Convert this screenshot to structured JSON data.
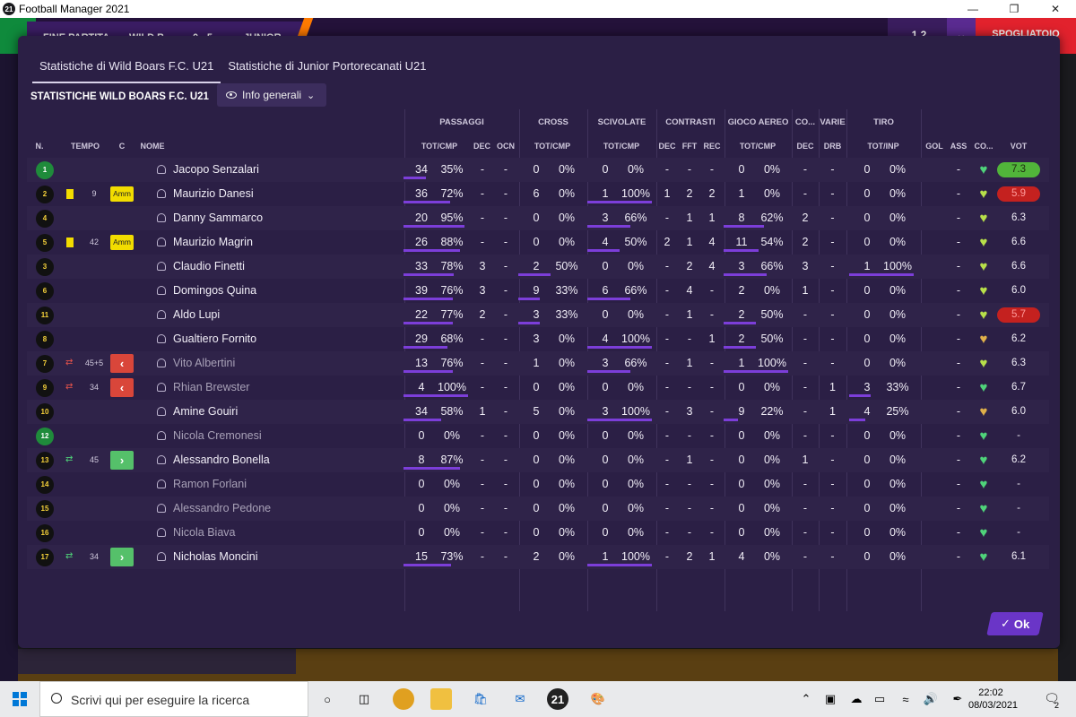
{
  "window": {
    "title": "Football Manager 2021",
    "logo": "21"
  },
  "game_bar": {
    "status": "FINE PARTITA",
    "home_team": "WILD B",
    "score": "0 - 5",
    "away_team": "JUNIOR",
    "menu_label": "1 2",
    "spogliatoio": "SPOGLIATOIO"
  },
  "tabs": [
    {
      "label": "Statistiche di Wild Boars F.C. U21",
      "active": true
    },
    {
      "label": "Statistiche di Junior Portorecanati U21",
      "active": false
    }
  ],
  "section_title": "STATISTICHE WILD BOARS F.C. U21",
  "view_dropdown": {
    "label": "Info generali"
  },
  "groups": [
    "PASSAGGI",
    "CROSS",
    "SCIVOLATE",
    "CONTRASTI",
    "GIOCO AEREO",
    "CO...",
    "VARIE",
    "TIRO"
  ],
  "columns": {
    "num": "N.",
    "tempo": "TEMPO",
    "c": "C",
    "nome": "NOME",
    "pass_totcmp": "TOT/CMP",
    "pass_dec": "DEC",
    "pass_ocn": "OCN",
    "cross_totcmp": "TOT/CMP",
    "sciv_totcmp": "TOT/CMP",
    "con_dec": "DEC",
    "con_fft": "FFT",
    "con_rec": "REC",
    "aereo_totcmp": "TOT/CMP",
    "co_dec": "DEC",
    "varie_drb": "DRB",
    "tiro_totinp": "TOT/INP",
    "gol": "GOL",
    "ass": "ASS",
    "cond": "CO...",
    "vot": "VOT"
  },
  "players": [
    {
      "num": "1",
      "gk": true,
      "card": "",
      "tempo": "",
      "c": "",
      "sub": "",
      "name": "Jacopo Senzalari",
      "dim": false,
      "pass_tot": "34",
      "pass_pct": "35%",
      "pass_pct_val": 35,
      "pass_dec": "-",
      "pass_ocn": "-",
      "cross_tot": "0",
      "cross_pct": "0%",
      "cross_pct_val": 0,
      "sciv_tot": "0",
      "sciv_pct": "0%",
      "sciv_pct_val": 0,
      "con_dec": "-",
      "con_fft": "-",
      "con_rec": "-",
      "aereo_tot": "0",
      "aereo_pct": "0%",
      "aereo_pct_val": 0,
      "co_dec": "-",
      "drb": "-",
      "tiro_tot": "0",
      "tiro_pct": "0%",
      "tiro_pct_val": 0,
      "gol": "",
      "ass": "-",
      "heart": "#4fd37a",
      "vot": "7.3",
      "vot_style": "green"
    },
    {
      "num": "2",
      "gk": false,
      "card": "yellow",
      "tempo": "9",
      "c": "Amm",
      "sub": "",
      "name": "Maurizio Danesi",
      "dim": false,
      "pass_tot": "36",
      "pass_pct": "72%",
      "pass_pct_val": 72,
      "pass_dec": "-",
      "pass_ocn": "-",
      "cross_tot": "6",
      "cross_pct": "0%",
      "cross_pct_val": 0,
      "sciv_tot": "1",
      "sciv_pct": "100%",
      "sciv_pct_val": 100,
      "con_dec": "1",
      "con_fft": "2",
      "con_rec": "2",
      "aereo_tot": "1",
      "aereo_pct": "0%",
      "aereo_pct_val": 0,
      "co_dec": "-",
      "drb": "-",
      "tiro_tot": "0",
      "tiro_pct": "0%",
      "tiro_pct_val": 0,
      "gol": "",
      "ass": "-",
      "heart": "#b8e04a",
      "vot": "5.9",
      "vot_style": "red"
    },
    {
      "num": "4",
      "gk": false,
      "card": "",
      "tempo": "",
      "c": "",
      "sub": "",
      "name": "Danny Sammarco",
      "dim": false,
      "pass_tot": "20",
      "pass_pct": "95%",
      "pass_pct_val": 95,
      "pass_dec": "-",
      "pass_ocn": "-",
      "cross_tot": "0",
      "cross_pct": "0%",
      "cross_pct_val": 0,
      "sciv_tot": "3",
      "sciv_pct": "66%",
      "sciv_pct_val": 66,
      "con_dec": "-",
      "con_fft": "1",
      "con_rec": "1",
      "aereo_tot": "8",
      "aereo_pct": "62%",
      "aereo_pct_val": 62,
      "co_dec": "2",
      "drb": "-",
      "tiro_tot": "0",
      "tiro_pct": "0%",
      "tiro_pct_val": 0,
      "gol": "",
      "ass": "-",
      "heart": "#b8e04a",
      "vot": "6.3",
      "vot_style": ""
    },
    {
      "num": "5",
      "gk": false,
      "card": "yellow",
      "tempo": "42",
      "c": "Amm",
      "sub": "",
      "name": "Maurizio Magrin",
      "dim": false,
      "pass_tot": "26",
      "pass_pct": "88%",
      "pass_pct_val": 88,
      "pass_dec": "-",
      "pass_ocn": "-",
      "cross_tot": "0",
      "cross_pct": "0%",
      "cross_pct_val": 0,
      "sciv_tot": "4",
      "sciv_pct": "50%",
      "sciv_pct_val": 50,
      "con_dec": "2",
      "con_fft": "1",
      "con_rec": "4",
      "aereo_tot": "11",
      "aereo_pct": "54%",
      "aereo_pct_val": 54,
      "co_dec": "2",
      "drb": "-",
      "tiro_tot": "0",
      "tiro_pct": "0%",
      "tiro_pct_val": 0,
      "gol": "",
      "ass": "-",
      "heart": "#b8e04a",
      "vot": "6.6",
      "vot_style": ""
    },
    {
      "num": "3",
      "gk": false,
      "card": "",
      "tempo": "",
      "c": "",
      "sub": "",
      "name": "Claudio Finetti",
      "dim": false,
      "pass_tot": "33",
      "pass_pct": "78%",
      "pass_pct_val": 78,
      "pass_dec": "3",
      "pass_ocn": "-",
      "cross_tot": "2",
      "cross_pct": "50%",
      "cross_pct_val": 50,
      "sciv_tot": "0",
      "sciv_pct": "0%",
      "sciv_pct_val": 0,
      "con_dec": "-",
      "con_fft": "2",
      "con_rec": "4",
      "aereo_tot": "3",
      "aereo_pct": "66%",
      "aereo_pct_val": 66,
      "co_dec": "3",
      "drb": "-",
      "tiro_tot": "1",
      "tiro_pct": "100%",
      "tiro_pct_val": 100,
      "gol": "",
      "ass": "-",
      "heart": "#b8e04a",
      "vot": "6.6",
      "vot_style": ""
    },
    {
      "num": "6",
      "gk": false,
      "card": "",
      "tempo": "",
      "c": "",
      "sub": "",
      "name": "Domingos Quina",
      "dim": false,
      "pass_tot": "39",
      "pass_pct": "76%",
      "pass_pct_val": 76,
      "pass_dec": "3",
      "pass_ocn": "-",
      "cross_tot": "9",
      "cross_pct": "33%",
      "cross_pct_val": 33,
      "sciv_tot": "6",
      "sciv_pct": "66%",
      "sciv_pct_val": 66,
      "con_dec": "-",
      "con_fft": "4",
      "con_rec": "-",
      "aereo_tot": "2",
      "aereo_pct": "0%",
      "aereo_pct_val": 0,
      "co_dec": "1",
      "drb": "-",
      "tiro_tot": "0",
      "tiro_pct": "0%",
      "tiro_pct_val": 0,
      "gol": "",
      "ass": "-",
      "heart": "#b8e04a",
      "vot": "6.0",
      "vot_style": ""
    },
    {
      "num": "11",
      "gk": false,
      "card": "",
      "tempo": "",
      "c": "",
      "sub": "",
      "name": "Aldo Lupi",
      "dim": false,
      "pass_tot": "22",
      "pass_pct": "77%",
      "pass_pct_val": 77,
      "pass_dec": "2",
      "pass_ocn": "-",
      "cross_tot": "3",
      "cross_pct": "33%",
      "cross_pct_val": 33,
      "sciv_tot": "0",
      "sciv_pct": "0%",
      "sciv_pct_val": 0,
      "con_dec": "-",
      "con_fft": "1",
      "con_rec": "-",
      "aereo_tot": "2",
      "aereo_pct": "50%",
      "aereo_pct_val": 50,
      "co_dec": "-",
      "drb": "-",
      "tiro_tot": "0",
      "tiro_pct": "0%",
      "tiro_pct_val": 0,
      "gol": "",
      "ass": "-",
      "heart": "#b8e04a",
      "vot": "5.7",
      "vot_style": "red"
    },
    {
      "num": "8",
      "gk": false,
      "card": "",
      "tempo": "",
      "c": "",
      "sub": "",
      "name": "Gualtiero Fornito",
      "dim": false,
      "pass_tot": "29",
      "pass_pct": "68%",
      "pass_pct_val": 68,
      "pass_dec": "-",
      "pass_ocn": "-",
      "cross_tot": "3",
      "cross_pct": "0%",
      "cross_pct_val": 0,
      "sciv_tot": "4",
      "sciv_pct": "100%",
      "sciv_pct_val": 100,
      "con_dec": "-",
      "con_fft": "-",
      "con_rec": "1",
      "aereo_tot": "2",
      "aereo_pct": "50%",
      "aereo_pct_val": 50,
      "co_dec": "-",
      "drb": "-",
      "tiro_tot": "0",
      "tiro_pct": "0%",
      "tiro_pct_val": 0,
      "gol": "",
      "ass": "-",
      "heart": "#e0b04a",
      "vot": "6.2",
      "vot_style": ""
    },
    {
      "num": "7",
      "gk": false,
      "card": "",
      "tempo": "45+5",
      "c": "",
      "sub": "out",
      "name": "Vito Albertini",
      "dim": true,
      "pass_tot": "13",
      "pass_pct": "76%",
      "pass_pct_val": 76,
      "pass_dec": "-",
      "pass_ocn": "-",
      "cross_tot": "1",
      "cross_pct": "0%",
      "cross_pct_val": 0,
      "sciv_tot": "3",
      "sciv_pct": "66%",
      "sciv_pct_val": 66,
      "con_dec": "-",
      "con_fft": "1",
      "con_rec": "-",
      "aereo_tot": "1",
      "aereo_pct": "100%",
      "aereo_pct_val": 100,
      "co_dec": "-",
      "drb": "-",
      "tiro_tot": "0",
      "tiro_pct": "0%",
      "tiro_pct_val": 0,
      "gol": "",
      "ass": "-",
      "heart": "#b8e04a",
      "vot": "6.3",
      "vot_style": ""
    },
    {
      "num": "9",
      "gk": false,
      "card": "",
      "tempo": "34",
      "c": "",
      "sub": "out",
      "name": "Rhian Brewster",
      "dim": true,
      "pass_tot": "4",
      "pass_pct": "100%",
      "pass_pct_val": 100,
      "pass_dec": "-",
      "pass_ocn": "-",
      "cross_tot": "0",
      "cross_pct": "0%",
      "cross_pct_val": 0,
      "sciv_tot": "0",
      "sciv_pct": "0%",
      "sciv_pct_val": 0,
      "con_dec": "-",
      "con_fft": "-",
      "con_rec": "-",
      "aereo_tot": "0",
      "aereo_pct": "0%",
      "aereo_pct_val": 0,
      "co_dec": "-",
      "drb": "1",
      "tiro_tot": "3",
      "tiro_pct": "33%",
      "tiro_pct_val": 33,
      "gol": "",
      "ass": "-",
      "heart": "#4fd37a",
      "vot": "6.7",
      "vot_style": ""
    },
    {
      "num": "10",
      "gk": false,
      "card": "",
      "tempo": "",
      "c": "",
      "sub": "",
      "name": "Amine Gouiri",
      "dim": false,
      "pass_tot": "34",
      "pass_pct": "58%",
      "pass_pct_val": 58,
      "pass_dec": "1",
      "pass_ocn": "-",
      "cross_tot": "5",
      "cross_pct": "0%",
      "cross_pct_val": 0,
      "sciv_tot": "3",
      "sciv_pct": "100%",
      "sciv_pct_val": 100,
      "con_dec": "-",
      "con_fft": "3",
      "con_rec": "-",
      "aereo_tot": "9",
      "aereo_pct": "22%",
      "aereo_pct_val": 22,
      "co_dec": "-",
      "drb": "1",
      "tiro_tot": "4",
      "tiro_pct": "25%",
      "tiro_pct_val": 25,
      "gol": "",
      "ass": "-",
      "heart": "#e0b04a",
      "vot": "6.0",
      "vot_style": ""
    },
    {
      "num": "12",
      "gk": true,
      "card": "",
      "tempo": "",
      "c": "",
      "sub": "",
      "name": "Nicola Cremonesi",
      "dim": true,
      "pass_tot": "0",
      "pass_pct": "0%",
      "pass_pct_val": 0,
      "pass_dec": "-",
      "pass_ocn": "-",
      "cross_tot": "0",
      "cross_pct": "0%",
      "cross_pct_val": 0,
      "sciv_tot": "0",
      "sciv_pct": "0%",
      "sciv_pct_val": 0,
      "con_dec": "-",
      "con_fft": "-",
      "con_rec": "-",
      "aereo_tot": "0",
      "aereo_pct": "0%",
      "aereo_pct_val": 0,
      "co_dec": "-",
      "drb": "-",
      "tiro_tot": "0",
      "tiro_pct": "0%",
      "tiro_pct_val": 0,
      "gol": "",
      "ass": "-",
      "heart": "#4fd37a",
      "vot": "-",
      "vot_style": ""
    },
    {
      "num": "13",
      "gk": false,
      "card": "",
      "tempo": "45",
      "c": "",
      "sub": "in",
      "name": "Alessandro Bonella",
      "dim": false,
      "pass_tot": "8",
      "pass_pct": "87%",
      "pass_pct_val": 87,
      "pass_dec": "-",
      "pass_ocn": "-",
      "cross_tot": "0",
      "cross_pct": "0%",
      "cross_pct_val": 0,
      "sciv_tot": "0",
      "sciv_pct": "0%",
      "sciv_pct_val": 0,
      "con_dec": "-",
      "con_fft": "1",
      "con_rec": "-",
      "aereo_tot": "0",
      "aereo_pct": "0%",
      "aereo_pct_val": 0,
      "co_dec": "1",
      "drb": "-",
      "tiro_tot": "0",
      "tiro_pct": "0%",
      "tiro_pct_val": 0,
      "gol": "",
      "ass": "-",
      "heart": "#4fd37a",
      "vot": "6.2",
      "vot_style": ""
    },
    {
      "num": "14",
      "gk": false,
      "card": "",
      "tempo": "",
      "c": "",
      "sub": "",
      "name": "Ramon Forlani",
      "dim": true,
      "pass_tot": "0",
      "pass_pct": "0%",
      "pass_pct_val": 0,
      "pass_dec": "-",
      "pass_ocn": "-",
      "cross_tot": "0",
      "cross_pct": "0%",
      "cross_pct_val": 0,
      "sciv_tot": "0",
      "sciv_pct": "0%",
      "sciv_pct_val": 0,
      "con_dec": "-",
      "con_fft": "-",
      "con_rec": "-",
      "aereo_tot": "0",
      "aereo_pct": "0%",
      "aereo_pct_val": 0,
      "co_dec": "-",
      "drb": "-",
      "tiro_tot": "0",
      "tiro_pct": "0%",
      "tiro_pct_val": 0,
      "gol": "",
      "ass": "-",
      "heart": "#4fd37a",
      "vot": "-",
      "vot_style": ""
    },
    {
      "num": "15",
      "gk": false,
      "card": "",
      "tempo": "",
      "c": "",
      "sub": "",
      "name": "Alessandro Pedone",
      "dim": true,
      "pass_tot": "0",
      "pass_pct": "0%",
      "pass_pct_val": 0,
      "pass_dec": "-",
      "pass_ocn": "-",
      "cross_tot": "0",
      "cross_pct": "0%",
      "cross_pct_val": 0,
      "sciv_tot": "0",
      "sciv_pct": "0%",
      "sciv_pct_val": 0,
      "con_dec": "-",
      "con_fft": "-",
      "con_rec": "-",
      "aereo_tot": "0",
      "aereo_pct": "0%",
      "aereo_pct_val": 0,
      "co_dec": "-",
      "drb": "-",
      "tiro_tot": "0",
      "tiro_pct": "0%",
      "tiro_pct_val": 0,
      "gol": "",
      "ass": "-",
      "heart": "#4fd37a",
      "vot": "-",
      "vot_style": ""
    },
    {
      "num": "16",
      "gk": false,
      "card": "",
      "tempo": "",
      "c": "",
      "sub": "",
      "name": "Nicola Biava",
      "dim": true,
      "pass_tot": "0",
      "pass_pct": "0%",
      "pass_pct_val": 0,
      "pass_dec": "-",
      "pass_ocn": "-",
      "cross_tot": "0",
      "cross_pct": "0%",
      "cross_pct_val": 0,
      "sciv_tot": "0",
      "sciv_pct": "0%",
      "sciv_pct_val": 0,
      "con_dec": "-",
      "con_fft": "-",
      "con_rec": "-",
      "aereo_tot": "0",
      "aereo_pct": "0%",
      "aereo_pct_val": 0,
      "co_dec": "-",
      "drb": "-",
      "tiro_tot": "0",
      "tiro_pct": "0%",
      "tiro_pct_val": 0,
      "gol": "",
      "ass": "-",
      "heart": "#4fd37a",
      "vot": "-",
      "vot_style": ""
    },
    {
      "num": "17",
      "gk": false,
      "card": "",
      "tempo": "34",
      "c": "",
      "sub": "in",
      "name": "Nicholas Moncini",
      "dim": false,
      "pass_tot": "15",
      "pass_pct": "73%",
      "pass_pct_val": 73,
      "pass_dec": "-",
      "pass_ocn": "-",
      "cross_tot": "2",
      "cross_pct": "0%",
      "cross_pct_val": 0,
      "sciv_tot": "1",
      "sciv_pct": "100%",
      "sciv_pct_val": 100,
      "con_dec": "-",
      "con_fft": "2",
      "con_rec": "1",
      "aereo_tot": "4",
      "aereo_pct": "0%",
      "aereo_pct_val": 0,
      "co_dec": "-",
      "drb": "-",
      "tiro_tot": "0",
      "tiro_pct": "0%",
      "tiro_pct_val": 0,
      "gol": "",
      "ass": "-",
      "heart": "#4fd37a",
      "vot": "6.1",
      "vot_style": ""
    }
  ],
  "ok_button": {
    "label": "Ok"
  },
  "taskbar": {
    "search_placeholder": "Scrivi qui per eseguire la ricerca",
    "time": "22:02",
    "date": "08/03/2021",
    "notifications": "2",
    "fm_icon": "21"
  },
  "colors": {
    "accent": "#7c3ed9",
    "modal_bg": "#2b1f45",
    "rating_green": "#51b53a",
    "rating_red": "#c4211f"
  }
}
